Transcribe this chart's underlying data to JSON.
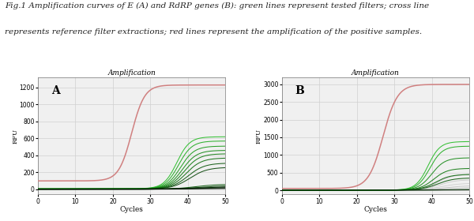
{
  "title_line1": "Fig.1 Amplification curves of E (A) and RdRP genes (B): green lines represent tested filters; cross line",
  "title_line2": "represents reference filter extractions; red lines represent the amplification of the positive samples.",
  "title_fontsize": 7.5,
  "title_style": "italic",
  "subplot_title": "Amplification",
  "subplot_title_fontsize": 6.5,
  "xlabel": "Cycles",
  "ylabel": "RFU",
  "xlabel_fontsize": 6.5,
  "ylabel_fontsize": 6,
  "label_A": "A",
  "label_B": "B",
  "x_max": 50,
  "panel_A": {
    "ylim": [
      -60,
      1320
    ],
    "yticks": [
      0,
      200,
      400,
      600,
      800,
      1000,
      1200
    ],
    "red_line": {
      "plateau": 1230,
      "midpoint": 25,
      "steepness": 0.58,
      "baseline": 100
    },
    "green_lines": [
      {
        "plateau": 620,
        "midpoint": 37,
        "steepness": 0.58,
        "color": "#22bb22",
        "baseline": 8
      },
      {
        "plateau": 570,
        "midpoint": 37.5,
        "steepness": 0.56,
        "color": "#1aaa1a",
        "baseline": 7
      },
      {
        "plateau": 510,
        "midpoint": 38,
        "steepness": 0.54,
        "color": "#159915",
        "baseline": 6
      },
      {
        "plateau": 460,
        "midpoint": 38.5,
        "steepness": 0.52,
        "color": "#118811",
        "baseline": 6
      },
      {
        "plateau": 420,
        "midpoint": 39,
        "steepness": 0.5,
        "color": "#0d7a0d",
        "baseline": 5
      },
      {
        "plateau": 370,
        "midpoint": 39.5,
        "steepness": 0.48,
        "color": "#0a6a0a",
        "baseline": 5
      },
      {
        "plateau": 310,
        "midpoint": 40,
        "steepness": 0.45,
        "color": "#085508",
        "baseline": 4
      },
      {
        "plateau": 260,
        "midpoint": 40.5,
        "steepness": 0.43,
        "color": "#064406",
        "baseline": 4
      },
      {
        "plateau": 60,
        "midpoint": 42,
        "steepness": 0.35,
        "color": "#085508",
        "baseline": 3
      },
      {
        "plateau": 45,
        "midpoint": 43,
        "steepness": 0.28,
        "color": "#064406",
        "baseline": 2
      },
      {
        "plateau": 35,
        "midpoint": 43.5,
        "steepness": 0.22,
        "color": "#053305",
        "baseline": 2
      },
      {
        "plateau": 25,
        "midpoint": 44,
        "steepness": 0.18,
        "color": "#042204",
        "baseline": 2
      },
      {
        "plateau": 15,
        "midpoint": 45,
        "steepness": 0.15,
        "color": "#031103",
        "baseline": 1
      }
    ],
    "cross_lines": [
      {
        "plateau": 48,
        "midpoint": 50,
        "steepness": 0.1,
        "color": "#999999",
        "baseline": 3
      },
      {
        "plateau": 38,
        "midpoint": 50,
        "steepness": 0.08,
        "color": "#aaaaaa",
        "baseline": 2
      },
      {
        "plateau": 28,
        "midpoint": 50,
        "steepness": 0.07,
        "color": "#bbbbbb",
        "baseline": 2
      }
    ]
  },
  "panel_B": {
    "ylim": [
      -120,
      3200
    ],
    "yticks": [
      0,
      500,
      1000,
      1500,
      2000,
      2500,
      3000
    ],
    "red_line": {
      "plateau": 3000,
      "midpoint": 27,
      "steepness": 0.52,
      "baseline": 50
    },
    "green_lines": [
      {
        "plateau": 1380,
        "midpoint": 39,
        "steepness": 0.62,
        "color": "#22bb22",
        "baseline": 5
      },
      {
        "plateau": 1250,
        "midpoint": 39.5,
        "steepness": 0.6,
        "color": "#1aaa1a",
        "baseline": 4
      },
      {
        "plateau": 920,
        "midpoint": 40,
        "steepness": 0.57,
        "color": "#158815",
        "baseline": 4
      },
      {
        "plateau": 620,
        "midpoint": 40.5,
        "steepness": 0.54,
        "color": "#0d770d",
        "baseline": 3
      },
      {
        "plateau": 450,
        "midpoint": 41,
        "steepness": 0.5,
        "color": "#0a660a",
        "baseline": 3
      },
      {
        "plateau": 350,
        "midpoint": 41.5,
        "steepness": 0.46,
        "color": "#085508",
        "baseline": 2
      },
      {
        "plateau": 25,
        "midpoint": 44,
        "steepness": 0.22,
        "color": "#064406",
        "baseline": 2
      },
      {
        "plateau": 15,
        "midpoint": 45,
        "steepness": 0.16,
        "color": "#042204",
        "baseline": 1
      }
    ],
    "cross_lines": [
      {
        "plateau": 450,
        "midpoint": 41.5,
        "steepness": 0.48,
        "color": "#bbbbbb",
        "baseline": 2
      },
      {
        "plateau": 300,
        "midpoint": 42,
        "steepness": 0.44,
        "color": "#c5c5c5",
        "baseline": 2
      },
      {
        "plateau": 200,
        "midpoint": 42.5,
        "steepness": 0.4,
        "color": "#cccccc",
        "baseline": 2
      },
      {
        "plateau": 130,
        "midpoint": 43,
        "steepness": 0.35,
        "color": "#c0c0c0",
        "baseline": 2
      },
      {
        "plateau": 80,
        "midpoint": 43.5,
        "steepness": 0.28,
        "color": "#b5b5b5",
        "baseline": 2
      }
    ]
  },
  "bg_color": "#ffffff",
  "plot_bg_color": "#f0f0f0",
  "grid_color": "#d0d0d0",
  "red_color": "#d08080"
}
